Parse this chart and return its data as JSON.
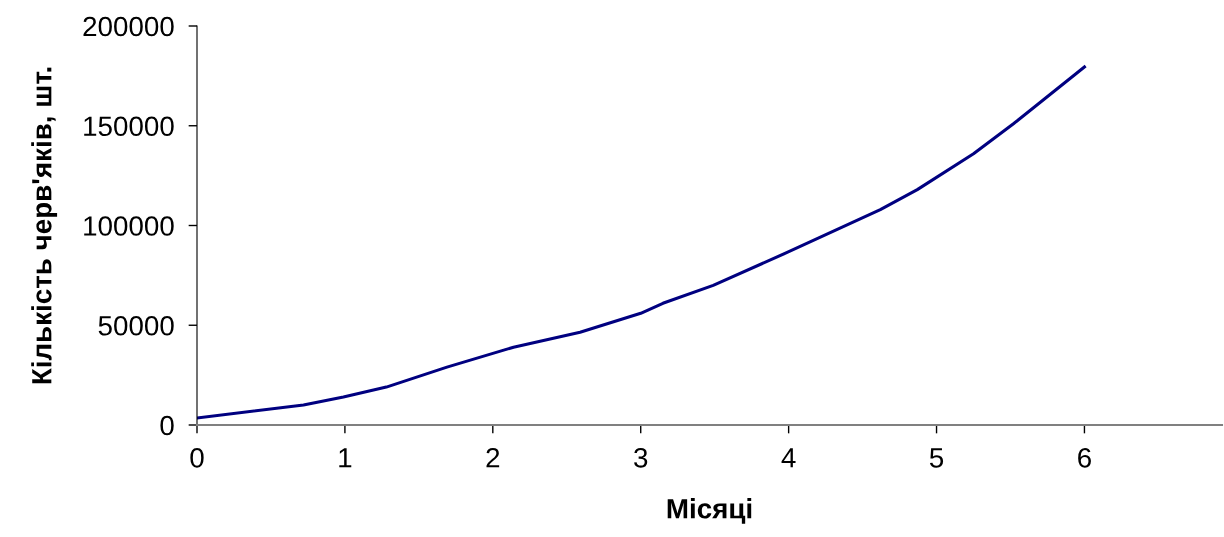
{
  "chart_data": {
    "type": "line",
    "xlabel": "Місяці",
    "ylabel": "Кількість черв'яків, шт.",
    "series": [
      {
        "color": "#000080",
        "x": [
          0,
          0.72,
          0.99,
          1.28,
          1.69,
          2.14,
          2.59,
          3.0,
          3.15,
          3.49,
          3.99,
          4.62,
          4.87,
          5.25,
          5.52,
          6.0
        ],
        "values": [
          3500,
          10000,
          14000,
          19000,
          29000,
          39000,
          46500,
          56000,
          61000,
          70000,
          86500,
          108000,
          118000,
          136000,
          151000,
          179500
        ]
      }
    ],
    "xlim": [
      0,
      6.93
    ],
    "xticks": [
      0,
      1,
      2,
      3,
      4,
      5,
      6
    ],
    "ylim": [
      0,
      200000
    ],
    "yticks": [
      0,
      50000,
      100000,
      150000,
      200000
    ],
    "grid": false,
    "legend": false,
    "marker": "none",
    "line_style": "solid"
  }
}
